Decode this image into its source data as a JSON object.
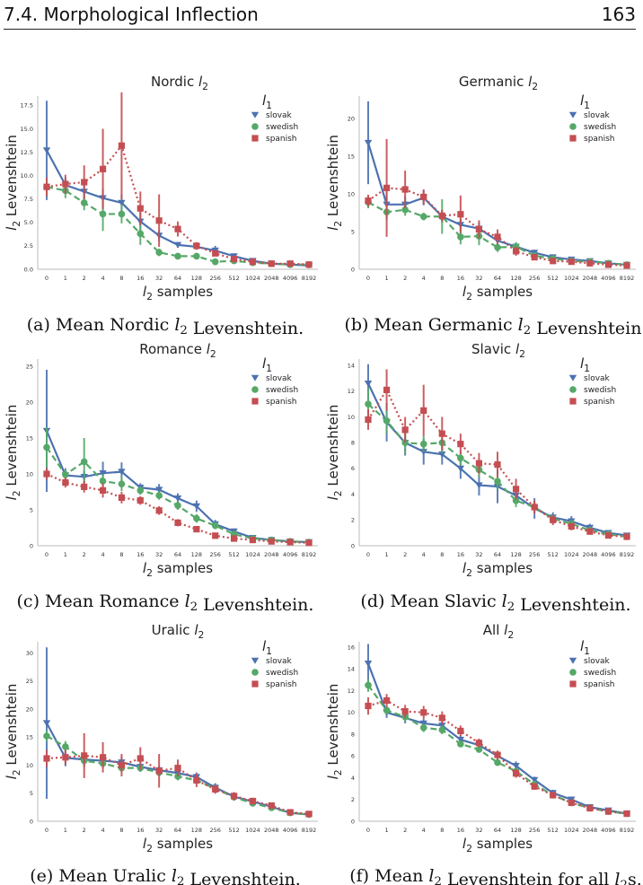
{
  "header": {
    "section": "7.4.  Morphological Inflection",
    "page": "163"
  },
  "x_ticks": [
    "0",
    "1",
    "2",
    "4",
    "8",
    "16",
    "32",
    "64",
    "128",
    "256",
    "512",
    "1024",
    "2048",
    "4096",
    "8192"
  ],
  "legend": {
    "title": "l1",
    "entries": [
      "slovak",
      "swedish",
      "spanish"
    ]
  },
  "colors": {
    "slovak": "#4c72b0",
    "swedish": "#55a868",
    "spanish": "#c44e52"
  },
  "chart_data": [
    {
      "type": "line",
      "title": "Nordic l2",
      "xlabel": "l2 samples",
      "ylabel": "l2 Levenshtein",
      "caption": "(a) Mean Nordic l2 Levenshtein.",
      "ylim": [
        0,
        18.5
      ],
      "yticks": [
        0.0,
        2.5,
        5.0,
        7.5,
        10.0,
        12.5,
        15.0,
        17.5
      ],
      "series": [
        {
          "name": "slovak",
          "values": [
            12.7,
            9.0,
            8.3,
            7.6,
            7.1,
            5.1,
            3.6,
            2.6,
            2.4,
            2.0,
            1.4,
            0.9,
            0.6,
            0.5,
            0.4
          ],
          "err": [
            5.3,
            0.8,
            0.8,
            1.0,
            0.9,
            1.0,
            0.6,
            0.3,
            0.3,
            0.5,
            0.3,
            0.2,
            0.1,
            0.1,
            0.1
          ]
        },
        {
          "name": "swedish",
          "values": [
            8.8,
            8.4,
            7.1,
            5.9,
            5.9,
            3.8,
            1.8,
            1.4,
            1.4,
            0.8,
            0.9,
            0.7,
            0.6,
            0.5,
            0.5
          ],
          "err": [
            0.8,
            0.8,
            0.8,
            1.8,
            1.0,
            1.2,
            0.4,
            0.3,
            0.3,
            0.2,
            0.2,
            0.1,
            0.1,
            0.1,
            0.1
          ]
        },
        {
          "name": "spanish",
          "values": [
            8.8,
            9.1,
            9.3,
            10.7,
            13.2,
            6.5,
            5.2,
            4.3,
            2.5,
            1.7,
            1.1,
            0.8,
            0.6,
            0.6,
            0.5
          ],
          "err": [
            1.0,
            1.0,
            1.8,
            4.3,
            5.7,
            1.8,
            2.8,
            0.8,
            0.4,
            0.3,
            0.2,
            0.1,
            0.1,
            0.1,
            0.1
          ]
        }
      ]
    },
    {
      "type": "line",
      "title": "Germanic l2",
      "xlabel": "l2 samples",
      "ylabel": "l2 Levenshtein",
      "caption": "(b) Mean Germanic l2 Levenshtein.",
      "ylim": [
        0,
        23
      ],
      "yticks": [
        0,
        5,
        10,
        15,
        20
      ],
      "series": [
        {
          "name": "slovak",
          "values": [
            16.8,
            8.6,
            8.6,
            9.5,
            7.0,
            5.9,
            5.4,
            3.8,
            3.0,
            2.2,
            1.6,
            1.3,
            1.1,
            0.8,
            0.6
          ],
          "err": [
            5.5,
            2.0,
            1.0,
            1.0,
            0.8,
            0.8,
            0.8,
            0.8,
            0.5,
            0.4,
            0.3,
            0.2,
            0.1,
            0.1,
            0.1
          ]
        },
        {
          "name": "swedish",
          "values": [
            8.9,
            7.6,
            7.9,
            7.0,
            7.0,
            4.3,
            4.4,
            2.9,
            3.0,
            1.8,
            1.4,
            1.1,
            1.0,
            0.8,
            0.6
          ],
          "err": [
            0.8,
            0.8,
            0.8,
            0.5,
            2.3,
            1.0,
            1.2,
            0.6,
            0.6,
            0.4,
            0.3,
            0.2,
            0.1,
            0.1,
            0.1
          ]
        },
        {
          "name": "spanish",
          "values": [
            9.1,
            10.8,
            10.6,
            9.6,
            7.1,
            7.3,
            5.3,
            4.3,
            2.4,
            1.6,
            1.1,
            1.0,
            0.8,
            0.6,
            0.5
          ],
          "err": [
            0.8,
            6.5,
            2.5,
            1.0,
            0.8,
            2.5,
            1.2,
            1.0,
            0.6,
            0.3,
            0.2,
            0.1,
            0.1,
            0.1,
            0.1
          ]
        }
      ]
    },
    {
      "type": "line",
      "title": "Romance l2",
      "xlabel": "l2 samples",
      "ylabel": "l2 Levenshtein",
      "caption": "(c) Mean Romance l2 Levenshtein.",
      "ylim": [
        0,
        26
      ],
      "yticks": [
        0,
        5,
        10,
        15,
        20,
        25
      ],
      "series": [
        {
          "name": "slovak",
          "values": [
            16.0,
            9.8,
            9.6,
            10.1,
            10.3,
            8.1,
            7.8,
            6.6,
            5.5,
            3.0,
            2.0,
            1.1,
            0.8,
            0.6,
            0.5
          ],
          "err": [
            8.5,
            1.0,
            0.8,
            1.6,
            1.3,
            0.6,
            0.8,
            0.7,
            0.8,
            0.6,
            0.4,
            0.2,
            0.1,
            0.1,
            0.1
          ]
        },
        {
          "name": "swedish",
          "values": [
            13.7,
            9.9,
            11.7,
            9.0,
            8.6,
            7.7,
            7.0,
            5.6,
            3.8,
            2.8,
            1.6,
            1.0,
            0.8,
            0.6,
            0.5
          ],
          "err": [
            2.8,
            0.8,
            3.3,
            1.0,
            1.0,
            0.6,
            0.6,
            0.6,
            0.6,
            0.5,
            0.3,
            0.2,
            0.1,
            0.1,
            0.1
          ]
        },
        {
          "name": "spanish",
          "values": [
            10.0,
            8.8,
            8.2,
            7.7,
            6.7,
            6.3,
            4.9,
            3.2,
            2.3,
            1.4,
            1.0,
            0.8,
            0.6,
            0.5,
            0.4
          ],
          "err": [
            0.8,
            0.7,
            0.8,
            1.0,
            0.8,
            0.6,
            0.6,
            0.5,
            0.4,
            0.3,
            0.2,
            0.1,
            0.1,
            0.1,
            0.1
          ]
        }
      ]
    },
    {
      "type": "line",
      "title": "Slavic l2",
      "xlabel": "l2 samples",
      "ylabel": "l2 Levenshtein",
      "caption": "(d) Mean Slavic l2 Levenshtein.",
      "ylim": [
        0,
        14.5
      ],
      "yticks": [
        0,
        2,
        4,
        6,
        8,
        10,
        12,
        14
      ],
      "series": [
        {
          "name": "slovak",
          "values": [
            12.6,
            9.6,
            8.0,
            7.3,
            7.1,
            6.0,
            4.7,
            4.6,
            3.9,
            2.9,
            2.2,
            1.9,
            1.4,
            1.0,
            0.8
          ],
          "err": [
            1.5,
            1.5,
            1.0,
            1.0,
            0.8,
            0.8,
            0.8,
            1.3,
            0.6,
            0.8,
            0.4,
            0.4,
            0.3,
            0.2,
            0.2
          ]
        },
        {
          "name": "swedish",
          "values": [
            11.0,
            9.7,
            8.0,
            7.9,
            8.0,
            6.8,
            5.9,
            5.0,
            3.5,
            3.0,
            2.1,
            1.7,
            1.2,
            0.9,
            0.7
          ],
          "err": [
            1.3,
            1.0,
            0.8,
            0.6,
            0.8,
            0.6,
            0.6,
            0.6,
            0.5,
            0.4,
            0.3,
            0.3,
            0.2,
            0.1,
            0.1
          ]
        },
        {
          "name": "spanish",
          "values": [
            9.8,
            12.1,
            9.0,
            10.5,
            8.7,
            7.9,
            6.4,
            6.3,
            4.4,
            3.0,
            2.0,
            1.5,
            1.1,
            0.8,
            0.7
          ],
          "err": [
            0.8,
            1.6,
            1.0,
            2.0,
            1.3,
            0.8,
            0.8,
            1.0,
            0.8,
            0.5,
            0.4,
            0.3,
            0.2,
            0.1,
            0.1
          ]
        }
      ]
    },
    {
      "type": "line",
      "title": "Uralic l2",
      "xlabel": "l2 samples",
      "ylabel": "l2 Levenshtein",
      "caption": "(e) Mean Uralic l2 Levenshtein.",
      "ylim": [
        0,
        32
      ],
      "yticks": [
        0,
        5,
        10,
        15,
        20,
        25,
        30
      ],
      "series": [
        {
          "name": "slovak",
          "values": [
            17.5,
            11.3,
            11.0,
            10.8,
            10.5,
            9.7,
            9.1,
            8.6,
            7.9,
            6.0,
            4.4,
            3.5,
            2.6,
            1.5,
            1.2
          ],
          "err": [
            13.5,
            1.5,
            1.3,
            1.2,
            1.0,
            0.8,
            0.8,
            0.8,
            0.8,
            0.8,
            0.7,
            0.6,
            0.5,
            0.4,
            0.3
          ]
        },
        {
          "name": "swedish",
          "values": [
            15.2,
            13.3,
            10.8,
            10.3,
            9.5,
            9.5,
            8.7,
            8.0,
            7.3,
            5.8,
            4.3,
            3.2,
            2.4,
            1.5,
            1.2
          ],
          "err": [
            1.0,
            1.0,
            0.8,
            0.8,
            0.7,
            0.7,
            0.7,
            0.7,
            0.6,
            0.6,
            0.5,
            0.5,
            0.4,
            0.3,
            0.2
          ]
        },
        {
          "name": "spanish",
          "values": [
            11.2,
            11.4,
            11.7,
            11.4,
            10.0,
            11.2,
            9.0,
            9.5,
            7.3,
            5.7,
            4.5,
            3.6,
            2.8,
            1.6,
            1.3
          ],
          "err": [
            1.5,
            1.3,
            4.0,
            2.7,
            2.0,
            2.0,
            3.0,
            1.5,
            1.2,
            0.8,
            0.7,
            0.6,
            0.5,
            0.4,
            0.3
          ]
        }
      ]
    },
    {
      "type": "line",
      "title": "All l2",
      "xlabel": "l2 samples",
      "ylabel": "l2 Levenshtein",
      "caption": "(f) Mean l2 Levenshtein for all l2s.",
      "ylim": [
        0,
        16.5
      ],
      "yticks": [
        0,
        2,
        4,
        6,
        8,
        10,
        12,
        14,
        16
      ],
      "series": [
        {
          "name": "slovak",
          "values": [
            14.5,
            10.0,
            9.5,
            9.0,
            8.8,
            7.5,
            7.0,
            6.0,
            5.1,
            3.8,
            2.6,
            2.0,
            1.3,
            1.0,
            0.7
          ],
          "err": [
            1.8,
            0.5,
            0.5,
            0.4,
            0.4,
            0.4,
            0.4,
            0.4,
            0.4,
            0.3,
            0.3,
            0.2,
            0.1,
            0.1,
            0.1
          ]
        },
        {
          "name": "swedish",
          "values": [
            12.5,
            10.2,
            9.6,
            8.6,
            8.4,
            7.1,
            6.6,
            5.4,
            4.6,
            3.4,
            2.4,
            1.7,
            1.2,
            0.9,
            0.7
          ],
          "err": [
            0.6,
            0.4,
            0.4,
            0.4,
            0.4,
            0.3,
            0.3,
            0.3,
            0.3,
            0.3,
            0.2,
            0.2,
            0.1,
            0.1,
            0.1
          ]
        },
        {
          "name": "spanish",
          "values": [
            10.6,
            11.1,
            10.1,
            10.0,
            9.5,
            8.3,
            7.2,
            6.1,
            4.4,
            3.2,
            2.4,
            1.7,
            1.2,
            0.9,
            0.7
          ],
          "err": [
            0.8,
            0.6,
            0.6,
            0.6,
            0.6,
            0.5,
            0.4,
            0.4,
            0.4,
            0.3,
            0.2,
            0.2,
            0.1,
            0.1,
            0.1
          ]
        }
      ]
    }
  ]
}
